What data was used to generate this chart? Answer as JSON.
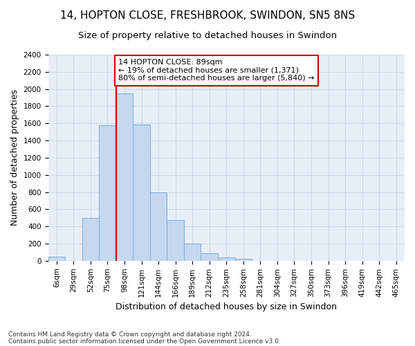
{
  "title_line1": "14, HOPTON CLOSE, FRESHBROOK, SWINDON, SN5 8NS",
  "title_line2": "Size of property relative to detached houses in Swindon",
  "xlabel": "Distribution of detached houses by size in Swindon",
  "ylabel": "Number of detached properties",
  "footer_line1": "Contains HM Land Registry data © Crown copyright and database right 2024.",
  "footer_line2": "Contains public sector information licensed under the Open Government Licence v3.0.",
  "categories": [
    "6sqm",
    "29sqm",
    "52sqm",
    "75sqm",
    "98sqm",
    "121sqm",
    "144sqm",
    "166sqm",
    "189sqm",
    "212sqm",
    "235sqm",
    "258sqm",
    "281sqm",
    "304sqm",
    "327sqm",
    "350sqm",
    "373sqm",
    "396sqm",
    "419sqm",
    "442sqm",
    "465sqm"
  ],
  "values": [
    50,
    0,
    500,
    1580,
    1950,
    1590,
    800,
    475,
    200,
    90,
    35,
    25,
    0,
    0,
    0,
    0,
    0,
    0,
    0,
    0,
    0
  ],
  "bar_color": "#c5d8f0",
  "bar_edge_color": "#7aadd4",
  "grid_color": "#d0daea",
  "annotation_text": "14 HOPTON CLOSE: 89sqm\n← 19% of detached houses are smaller (1,371)\n80% of semi-detached houses are larger (5,840) →",
  "annotation_box_color": "#ffffff",
  "annotation_box_edge": "#cc0000",
  "vline_color": "#cc0000",
  "vline_x_index": 4,
  "ylim": [
    0,
    2400
  ],
  "yticks": [
    0,
    200,
    400,
    600,
    800,
    1000,
    1200,
    1400,
    1600,
    1800,
    2000,
    2200,
    2400
  ],
  "background_color": "#e8eef8",
  "title_fontsize": 11,
  "subtitle_fontsize": 9.5,
  "axis_label_fontsize": 9,
  "tick_fontsize": 7.5,
  "ylabel_fontsize": 9,
  "annotation_fontsize": 8
}
